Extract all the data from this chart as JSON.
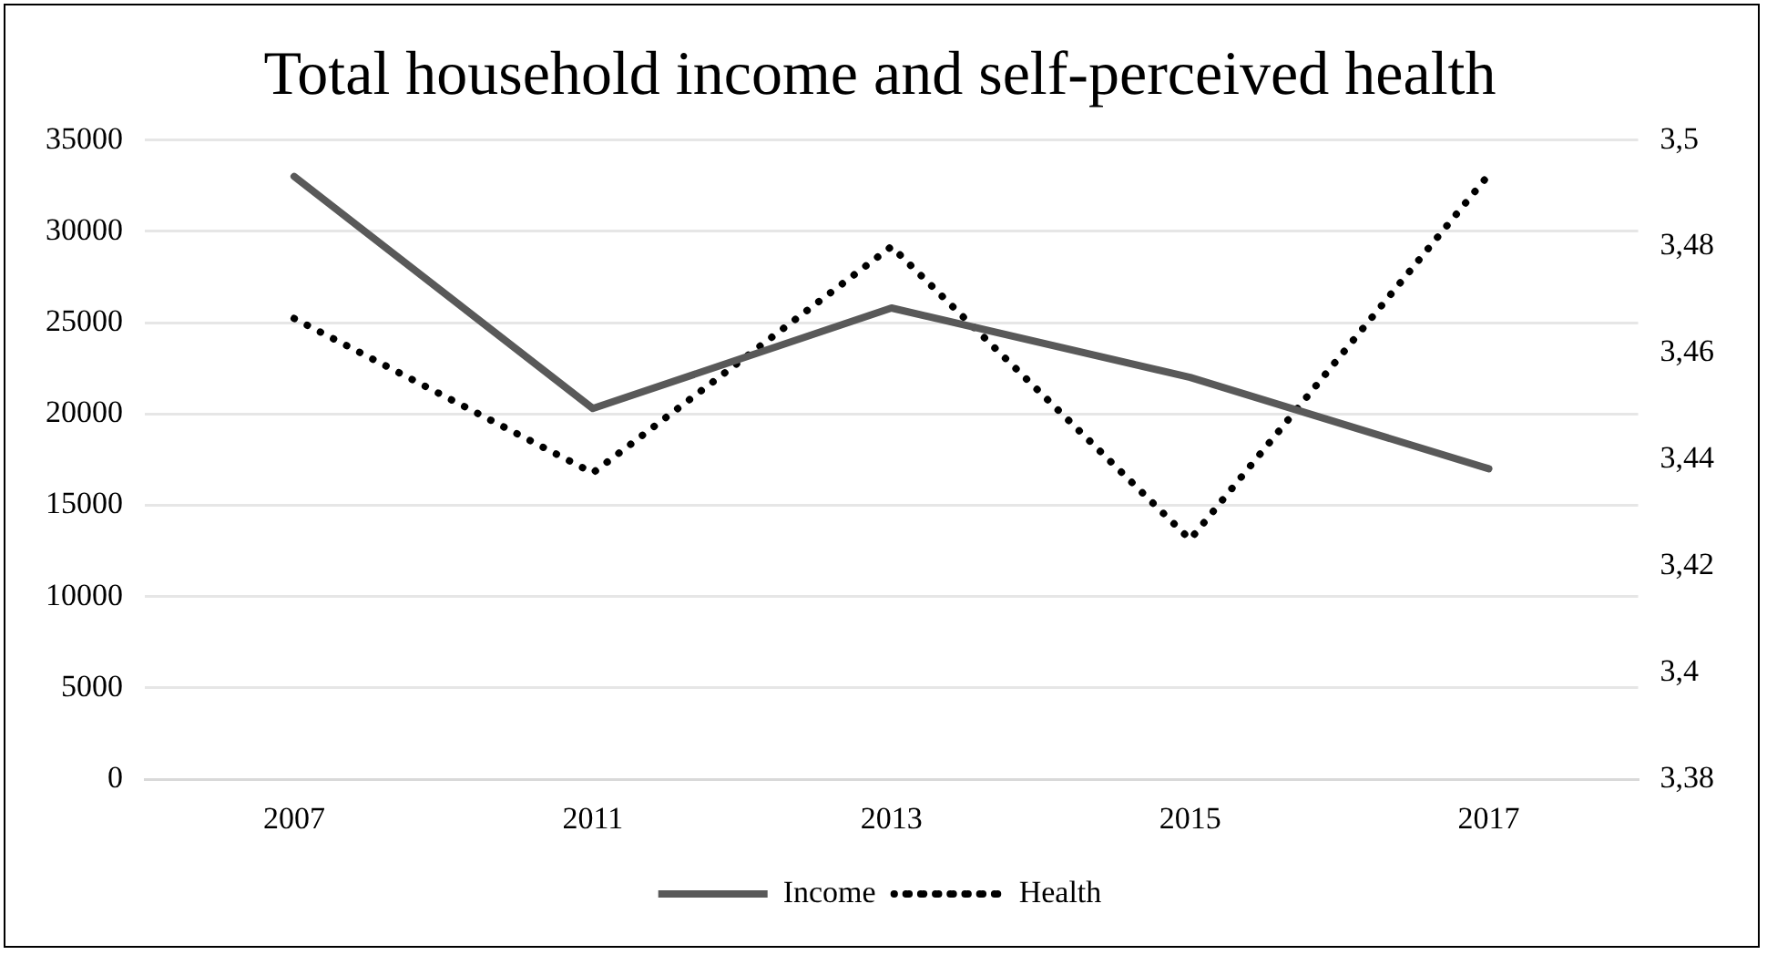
{
  "chart_data": {
    "type": "line",
    "title": "Total household income and self-perceived health",
    "categories": [
      "2007",
      "2011",
      "2013",
      "2015",
      "2017"
    ],
    "series": [
      {
        "name": "Income",
        "color": "#595959",
        "values": [
          33000,
          20300,
          25800,
          22000,
          17000
        ],
        "line_style": "solid"
      },
      {
        "name": "Health",
        "color": "#000000",
        "values": [
          3.4665,
          3.4375,
          3.48,
          3.425,
          3.4935
        ],
        "axis": "y2",
        "line_style": "dotted"
      }
    ],
    "ylim": [
      0,
      35000
    ],
    "yticks": [
      0,
      5000,
      10000,
      15000,
      20000,
      25000,
      30000,
      35000
    ],
    "y2lim": [
      3.38,
      3.5
    ],
    "y2ticks": [
      {
        "value": 3.38,
        "label": "3,38"
      },
      {
        "value": 3.4,
        "label": "3,4"
      },
      {
        "value": 3.42,
        "label": "3,42"
      },
      {
        "value": 3.44,
        "label": "3,44"
      },
      {
        "value": 3.46,
        "label": "3,46"
      },
      {
        "value": 3.48,
        "label": "3,48"
      },
      {
        "value": 3.5,
        "label": "3,5"
      }
    ],
    "grid": "y",
    "legend": "bottom",
    "marker": "none"
  }
}
